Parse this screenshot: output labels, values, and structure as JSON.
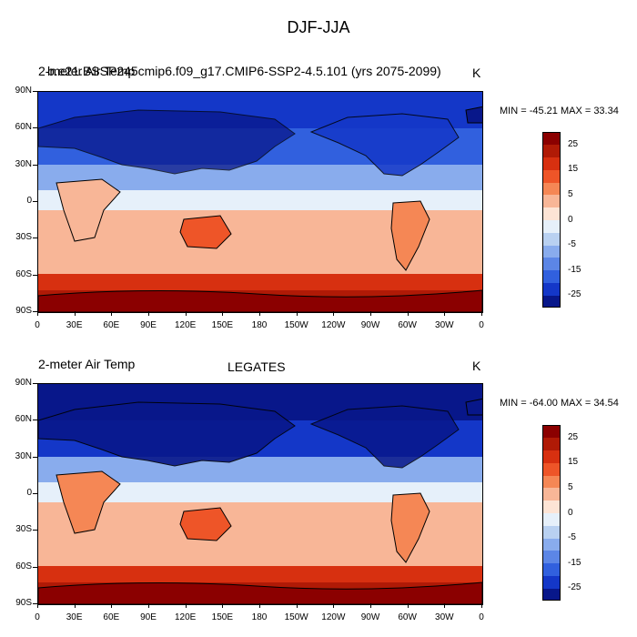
{
  "figure_title": "DJF-JJA",
  "panels": [
    {
      "left_title": "2-meter Air Temp",
      "center_title": "b.e21.BSSP245cmip6.f09_g17.CMIP6-SSP2-4.5.101 (yrs 2075-2099)",
      "right_title": "K",
      "min_max": "MIN = -45.21 MAX =  33.34"
    },
    {
      "left_title": "2-meter Air Temp",
      "center_title": "LEGATES",
      "right_title": "K",
      "min_max": "MIN = -64.00 MAX =  34.54"
    }
  ],
  "y_ticks": [
    "90N",
    "60N",
    "30N",
    "0",
    "30S",
    "60S",
    "90S"
  ],
  "x_ticks": [
    "0",
    "30E",
    "60E",
    "90E",
    "120E",
    "150E",
    "180",
    "150W",
    "120W",
    "90W",
    "60W",
    "30W",
    "0"
  ],
  "colorbar": {
    "labels": [
      "25",
      "15",
      "5",
      "0",
      "-5",
      "-15",
      "-25"
    ],
    "colors": [
      "#8b0000",
      "#b01a06",
      "#d73010",
      "#ee5528",
      "#f58755",
      "#f8b697",
      "#fde4d5",
      "#e6f0fa",
      "#b9d1f1",
      "#89aced",
      "#5c86e6",
      "#3160de",
      "#1437c8",
      "#08178a"
    ]
  },
  "chart_data": [
    {
      "type": "heatmap",
      "title": "DJF-JJA",
      "subtitle": "b.e21.BSSP245cmip6.f09_g17.CMIP6-SSP2-4.5.101 (yrs 2075-2099)",
      "variable": "2-meter Air Temp",
      "units": "K",
      "xlim": [
        0,
        360
      ],
      "ylim": [
        -90,
        90
      ],
      "min": -45.21,
      "max": 33.34,
      "contour_levels": [
        -30,
        -25,
        -20,
        -15,
        -10,
        -5,
        -2,
        2,
        5,
        10,
        15,
        20,
        25,
        30
      ],
      "zonal_band_values": [
        {
          "lat": [
            60,
            90
          ],
          "value": -25
        },
        {
          "lat": [
            30,
            60
          ],
          "value": -15
        },
        {
          "lat": [
            10,
            30
          ],
          "value": -5
        },
        {
          "lat": [
            -10,
            10
          ],
          "value": 0
        },
        {
          "lat": [
            -30,
            -10
          ],
          "value": 5
        },
        {
          "lat": [
            -60,
            -30
          ],
          "value": 5
        },
        {
          "lat": [
            -90,
            -60
          ],
          "value": 25
        }
      ]
    },
    {
      "type": "heatmap",
      "title": "DJF-JJA",
      "subtitle": "LEGATES",
      "variable": "2-meter Air Temp",
      "units": "K",
      "xlim": [
        0,
        360
      ],
      "ylim": [
        -90,
        90
      ],
      "min": -64.0,
      "max": 34.54,
      "contour_levels": [
        -30,
        -25,
        -20,
        -15,
        -10,
        -5,
        -2,
        2,
        5,
        10,
        15,
        20,
        25,
        30
      ],
      "zonal_band_values": [
        {
          "lat": [
            60,
            90
          ],
          "value": -30
        },
        {
          "lat": [
            30,
            60
          ],
          "value": -20
        },
        {
          "lat": [
            10,
            30
          ],
          "value": -5
        },
        {
          "lat": [
            -10,
            10
          ],
          "value": 0
        },
        {
          "lat": [
            -30,
            -10
          ],
          "value": 5
        },
        {
          "lat": [
            -60,
            -30
          ],
          "value": 5
        },
        {
          "lat": [
            -90,
            -60
          ],
          "value": 25
        }
      ]
    }
  ]
}
